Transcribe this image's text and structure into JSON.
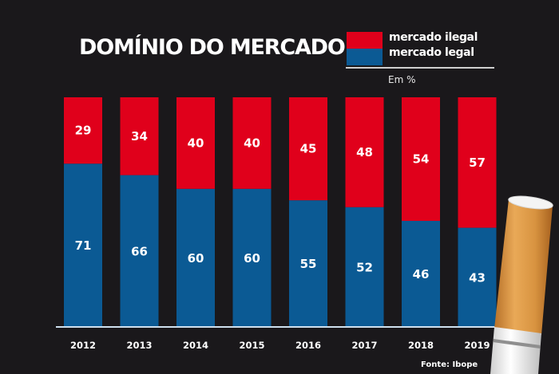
{
  "chart_data": {
    "type": "bar",
    "stacked": true,
    "title": "DOMÍNIO DO MERCADO",
    "unit_label": "Em %",
    "xlabel": "",
    "ylabel": "",
    "ylim": [
      0,
      100
    ],
    "grid": false,
    "legend_position": "top-right",
    "categories": [
      "2012",
      "2013",
      "2014",
      "2015",
      "2016",
      "2017",
      "2018",
      "2019"
    ],
    "series": [
      {
        "name": "mercado legal",
        "color": "#0b5a94",
        "values": [
          71,
          66,
          60,
          60,
          55,
          52,
          46,
          43
        ]
      },
      {
        "name": "mercado ilegal",
        "color": "#e0001b",
        "values": [
          29,
          34,
          40,
          40,
          45,
          48,
          54,
          57
        ]
      }
    ],
    "source": "Fonte: Ibope"
  },
  "colors": {
    "background": "#1a181b",
    "baseline": "#cfe0ee"
  }
}
